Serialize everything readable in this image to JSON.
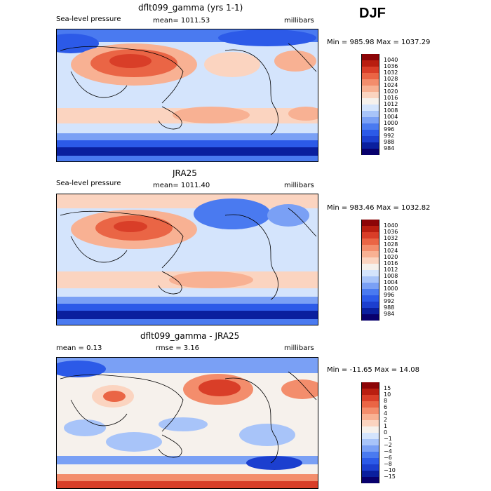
{
  "season": "DJF",
  "palette_sea_level": [
    "#08006d",
    "#0a1f9e",
    "#1c3fcf",
    "#2c5ae8",
    "#4a7af0",
    "#7aa0f5",
    "#a8c4f9",
    "#d4e4fc",
    "#f6f1ec",
    "#fbd4c0",
    "#f8b193",
    "#f38d6c",
    "#ea6545",
    "#d93e28",
    "#b91e10",
    "#8c0507"
  ],
  "palette_diff": [
    "#08006d",
    "#0a1f9e",
    "#1c3fcf",
    "#2c5ae8",
    "#4a7af0",
    "#7aa0f5",
    "#a8c4f9",
    "#d4e4fc",
    "#f6f1ec",
    "#fbd4c0",
    "#f8b193",
    "#f38d6c",
    "#ea6545",
    "#d93e28",
    "#b91e10",
    "#8c0507"
  ],
  "panels": [
    {
      "title": "dflt099_gamma (yrs 1-1)",
      "left_label": "Sea-level pressure",
      "mean_label": "mean=  1011.53",
      "units": "millibars",
      "minmax": "Min = 985.98 Max = 1037.29",
      "colorbar_ticks": [
        "1040",
        "1036",
        "1032",
        "1028",
        "1024",
        "1020",
        "1016",
        "1012",
        "1008",
        "1004",
        "1000",
        "996",
        "992",
        "988",
        "984"
      ]
    },
    {
      "title": "JRA25",
      "left_label": "Sea-level pressure",
      "mean_label": "mean=  1011.40",
      "units": "millibars",
      "minmax": "Min = 983.46 Max = 1032.82",
      "colorbar_ticks": [
        "1040",
        "1036",
        "1032",
        "1028",
        "1024",
        "1020",
        "1016",
        "1012",
        "1008",
        "1004",
        "1000",
        "996",
        "992",
        "988",
        "984"
      ]
    },
    {
      "title": "dflt099_gamma - JRA25",
      "left_label": "mean =    0.13",
      "mean_label": "rmse =    3.16",
      "units": "millibars",
      "minmax": "Min = -11.65 Max =   14.08",
      "colorbar_ticks": [
        "15",
        "10",
        "8",
        "6",
        "4",
        "2",
        "1",
        "0",
        "−1",
        "−2",
        "−4",
        "−6",
        "−8",
        "−10",
        "−15"
      ]
    }
  ]
}
